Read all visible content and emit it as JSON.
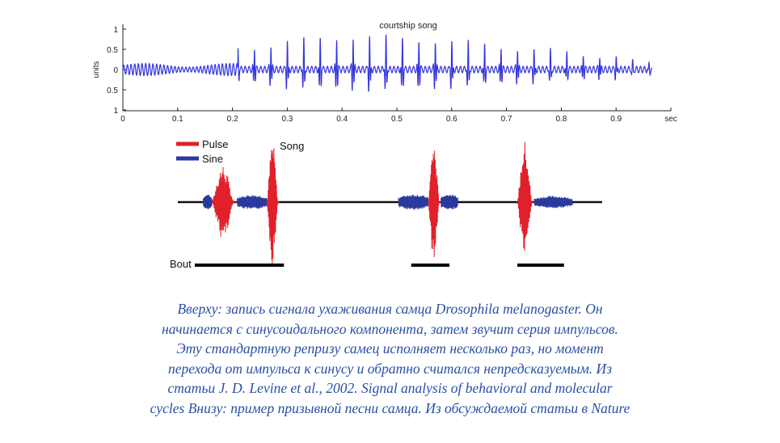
{
  "chart_data": [
    {
      "type": "line",
      "title": "courtship song",
      "xlabel": "",
      "x_unit_label": "sec",
      "ylabel": "units",
      "xlim": [
        0,
        1.0
      ],
      "ylim": [
        -1,
        1
      ],
      "x_ticks": [
        "0",
        "0.1",
        "0.2",
        "0.3",
        "0.4",
        "0.5",
        "0.6",
        "0.7",
        "0.8",
        "0.9",
        "sec"
      ],
      "y_ticks": [
        "1",
        "0.5",
        "0",
        "0.5",
        "1"
      ],
      "series": [
        {
          "color": "#3333dd",
          "sine_segment": {
            "start": 0.0,
            "end": 0.21,
            "amplitude": 0.15
          },
          "pulse_times": [
            0.21,
            0.24,
            0.27,
            0.3,
            0.33,
            0.36,
            0.39,
            0.42,
            0.45,
            0.48,
            0.51,
            0.54,
            0.57,
            0.6,
            0.63,
            0.66,
            0.69,
            0.72,
            0.75,
            0.78,
            0.81,
            0.84,
            0.87,
            0.9,
            0.93,
            0.96
          ],
          "pulse_amplitudes": [
            0.5,
            0.55,
            0.62,
            0.7,
            0.74,
            0.78,
            0.8,
            0.82,
            0.82,
            0.8,
            0.78,
            0.76,
            0.74,
            0.7,
            0.66,
            0.62,
            0.58,
            0.54,
            0.5,
            0.46,
            0.42,
            0.4,
            0.36,
            0.32,
            0.18,
            0.14
          ],
          "background_amplitude": 0.08
        }
      ]
    },
    {
      "type": "line",
      "title": "Song",
      "legend": [
        {
          "label": "Pulse",
          "color": "#e0202a"
        },
        {
          "label": "Sine",
          "color": "#2a3a9c"
        }
      ],
      "legend_placement": "top-left",
      "bout_label": "Bout",
      "segments": [
        {
          "kind": "sine",
          "start": 0.06,
          "end": 0.08,
          "amplitude": 0.12
        },
        {
          "kind": "pulse",
          "start": 0.08,
          "end": 0.14,
          "amplitude": 0.6
        },
        {
          "kind": "sine",
          "start": 0.14,
          "end": 0.21,
          "amplitude": 0.12
        },
        {
          "kind": "pulse",
          "start": 0.21,
          "end": 0.24,
          "amplitude": 0.98
        },
        {
          "kind": "sine",
          "start": 0.52,
          "end": 0.59,
          "amplitude": 0.13
        },
        {
          "kind": "pulse",
          "start": 0.59,
          "end": 0.62,
          "amplitude": 0.96
        },
        {
          "kind": "sine",
          "start": 0.62,
          "end": 0.66,
          "amplitude": 0.13
        },
        {
          "kind": "pulse",
          "start": 0.8,
          "end": 0.84,
          "amplitude": 0.98
        },
        {
          "kind": "sine",
          "start": 0.84,
          "end": 0.93,
          "amplitude": 0.1
        }
      ],
      "bouts": [
        {
          "start": 0.04,
          "end": 0.25
        },
        {
          "start": 0.55,
          "end": 0.64
        },
        {
          "start": 0.8,
          "end": 0.91
        }
      ],
      "baseline_color": "#111111",
      "bout_color": "#000000"
    }
  ],
  "caption_lines": [
    "Вверху: запись сигнала ухаживания самца Drosophila melanogaster. Он",
    "начинается с синусоидального компонента, затем звучит серия импульсов.",
    "Эту стандартную репризу самец исполняет несколько раз, но момент",
    "перехода от импульса к синусу и обратно считался непредсказуемым. Из",
    "статьи J. D. Levine et al., 2002. Signal analysis of behavioral and molecular",
    "cycles Внизу: пример призывной песни самца. Из обсуждаемой статьи в Nature"
  ],
  "colors": {
    "caption": "#2a4fa8",
    "top_signal": "#3333dd",
    "pulse": "#e0202a",
    "sine": "#2a3a9c"
  }
}
